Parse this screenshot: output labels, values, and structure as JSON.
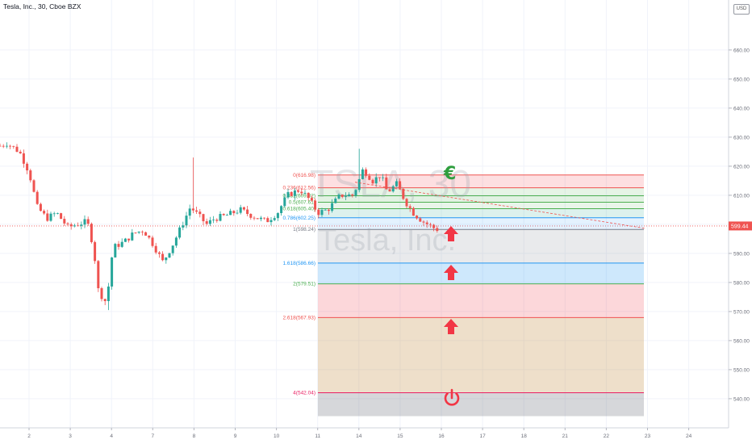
{
  "header": {
    "title": "Tesla, Inc., 30, Cboe BZX",
    "currency": "USD"
  },
  "watermark": {
    "symbol": "TSLA, 30",
    "name": "Tesla, Inc."
  },
  "price_tag": {
    "value": "599.44",
    "color": "#ef5350"
  },
  "icons": [
    "euro-icon",
    "arrow-up-icon",
    "arrow-up-icon",
    "arrow-up-icon",
    "power-icon"
  ],
  "chart_data": {
    "type": "candlestick",
    "title": "Tesla, Inc., 30, Cboe BZX",
    "ylim": [
      534,
      672
    ],
    "y_ticks": [
      540,
      550,
      560,
      570,
      580,
      590,
      600,
      610,
      620,
      630,
      640,
      650,
      660
    ],
    "y_tick_labels": [
      "540.00",
      "550.00",
      "560.00",
      "570.00",
      "580.00",
      "590.00",
      "600.00",
      "610.00",
      "620.00",
      "630.00",
      "640.00",
      "650.00",
      "660.00"
    ],
    "x_labels": [
      "2",
      "3",
      "4",
      "7",
      "8",
      "9",
      "10",
      "11",
      "14",
      "15",
      "16",
      "17",
      "18",
      "21",
      "22",
      "23",
      "24"
    ],
    "up_color": "#26a69a",
    "down_color": "#ef5350",
    "last_price": 599.44,
    "close_path": [
      [
        0,
        627
      ],
      [
        8,
        628
      ],
      [
        24,
        625
      ],
      [
        36,
        618
      ],
      [
        46,
        606
      ],
      [
        58,
        602
      ],
      [
        70,
        604
      ],
      [
        84,
        599
      ],
      [
        96,
        600
      ],
      [
        108,
        601
      ],
      [
        116,
        592
      ],
      [
        122,
        577
      ],
      [
        132,
        573
      ],
      [
        140,
        592
      ],
      [
        154,
        594
      ],
      [
        166,
        597
      ],
      [
        178,
        598
      ],
      [
        190,
        593
      ],
      [
        202,
        587
      ],
      [
        214,
        593
      ],
      [
        226,
        600
      ],
      [
        236,
        606
      ],
      [
        246,
        603
      ],
      [
        256,
        600
      ],
      [
        266,
        602
      ],
      [
        280,
        603
      ],
      [
        298,
        605
      ],
      [
        312,
        603
      ],
      [
        330,
        601
      ],
      [
        344,
        604
      ],
      [
        356,
        610
      ],
      [
        372,
        612
      ],
      [
        382,
        609
      ],
      [
        394,
        604
      ],
      [
        406,
        605
      ],
      [
        422,
        610
      ],
      [
        438,
        610
      ],
      [
        450,
        619
      ],
      [
        462,
        615
      ],
      [
        472,
        617
      ],
      [
        480,
        611
      ],
      [
        492,
        614
      ],
      [
        502,
        608
      ],
      [
        512,
        604
      ],
      [
        524,
        601
      ],
      [
        536,
        599
      ],
      [
        544,
        598
      ]
    ],
    "fib_levels": [
      {
        "ratio": "0",
        "price": 616.98,
        "label": "0(616.98)",
        "color": "#ef5350",
        "fill": "rgba(242,54,69,0.16)"
      },
      {
        "ratio": "0.236",
        "price": 612.56,
        "label": "0.236(612.56)",
        "color": "#ef5350",
        "fill": "rgba(76,175,80,0.14)"
      },
      {
        "ratio": "0.382",
        "price": 609.82,
        "label": "0.382(609.82)",
        "color": "#4caf50",
        "fill": "rgba(76,175,80,0.16)"
      },
      {
        "ratio": "0.5",
        "price": 607.61,
        "label": "0.5(607.61)",
        "color": "#4caf50",
        "fill": "rgba(76,175,80,0.12)"
      },
      {
        "ratio": "0.618",
        "price": 605.4,
        "label": "0.618(605.40)",
        "color": "#4caf50",
        "fill": "rgba(8,153,129,0.14)"
      },
      {
        "ratio": "0.786",
        "price": 602.25,
        "label": "0.786(602.25)",
        "color": "#2196f3",
        "fill": "rgba(33,150,243,0.12)"
      },
      {
        "ratio": "1",
        "price": 598.24,
        "label": "1(598.24)",
        "color": "#787b86",
        "fill": "rgba(120,123,134,0.16)"
      },
      {
        "ratio": "1.618",
        "price": 586.66,
        "label": "1.618(586.66)",
        "color": "#2196f3",
        "fill": "rgba(33,150,243,0.22)"
      },
      {
        "ratio": "2",
        "price": 579.51,
        "label": "2(579.51)",
        "color": "#4caf50",
        "fill": "rgba(242,54,69,0.20)"
      },
      {
        "ratio": "2.618",
        "price": 567.93,
        "label": "2.618(567.93)",
        "color": "#ef5350",
        "fill": "rgba(200,150,80,0.30)"
      },
      {
        "ratio": "4",
        "price": 542.04,
        "label": "4(542.04)",
        "color": "#e91e63",
        "fill": "rgba(120,123,134,0.30)"
      },
      {
        "ratio": "",
        "price": 534,
        "label": "",
        "color": "#e91e63",
        "fill": "rgba(233,30,99,0.32)"
      }
    ],
    "trendline": {
      "from": [
        440,
        614.5
      ],
      "to": [
        800,
        598.6
      ]
    }
  }
}
